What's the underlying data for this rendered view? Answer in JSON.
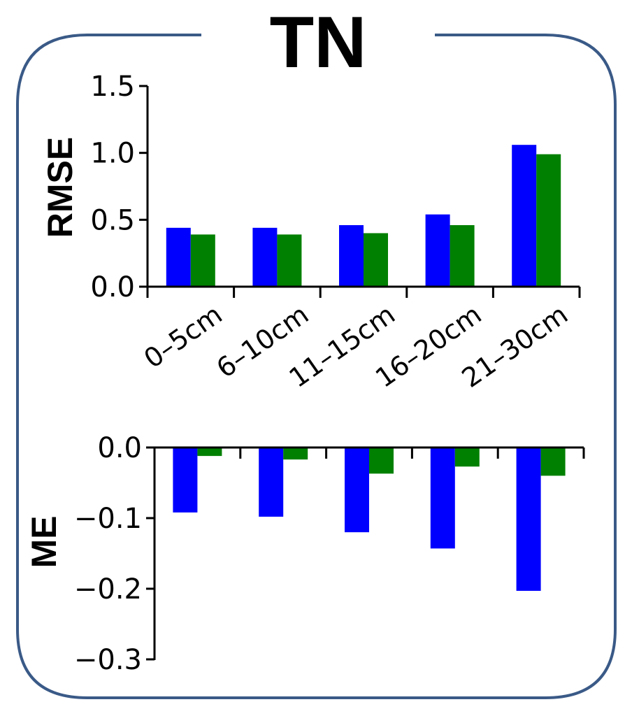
{
  "title": "TN",
  "colors": {
    "frame": "#3a5a87",
    "series_a": "#0000ff",
    "series_b": "#008000"
  },
  "chart_data": [
    {
      "type": "bar",
      "ylabel": "RMSE",
      "xlabel": "",
      "categories": [
        "0–5cm",
        "6–10cm",
        "11–15cm",
        "16–20cm",
        "21–30cm"
      ],
      "series": [
        {
          "color": "#0000ff",
          "values": [
            0.44,
            0.44,
            0.46,
            0.54,
            1.06
          ]
        },
        {
          "color": "#008000",
          "values": [
            0.39,
            0.39,
            0.4,
            0.46,
            0.99
          ]
        }
      ],
      "ylim": [
        0,
        1.5
      ],
      "yticks": [
        "0.0",
        "0.5",
        "1.0",
        "1.5"
      ],
      "grid": false,
      "legend": "none"
    },
    {
      "type": "bar",
      "ylabel": "ME",
      "xlabel": "",
      "categories": [
        "0–5cm",
        "6–10cm",
        "11–15cm",
        "16–20cm",
        "21–30cm"
      ],
      "series": [
        {
          "color": "#0000ff",
          "values": [
            -0.092,
            -0.098,
            -0.12,
            -0.143,
            -0.203
          ]
        },
        {
          "color": "#008000",
          "values": [
            -0.012,
            -0.017,
            -0.037,
            -0.027,
            -0.04
          ]
        }
      ],
      "ylim": [
        -0.3,
        0
      ],
      "yticks": [
        "0.0",
        "−0.1",
        "−0.2",
        "−0.3"
      ],
      "grid": false,
      "legend": "none"
    }
  ]
}
